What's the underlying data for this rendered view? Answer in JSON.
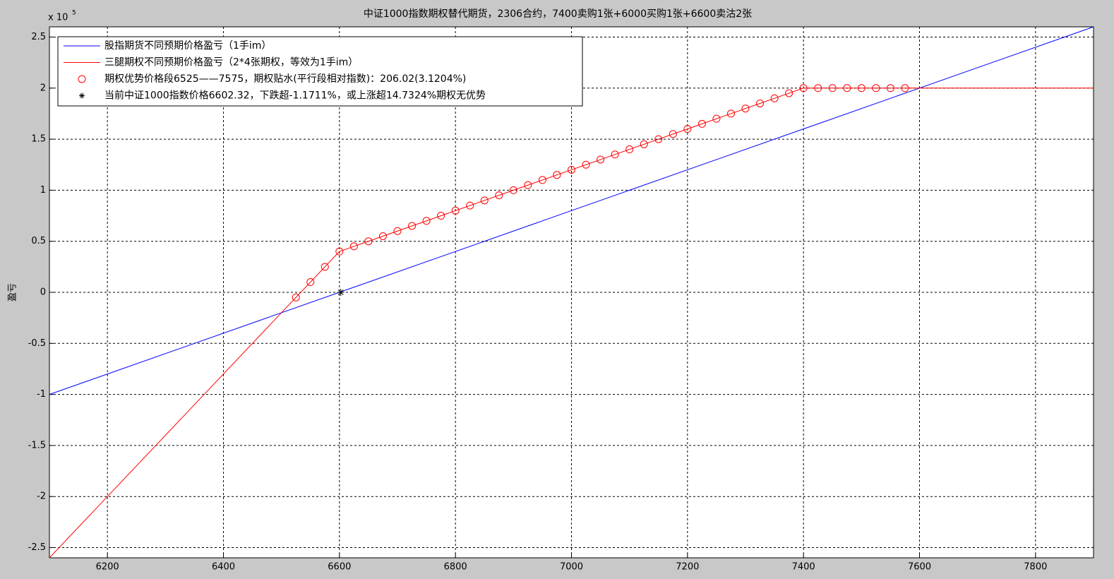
{
  "chart_data": {
    "type": "line",
    "title": "中证1000指数期权替代期货，2306合约，7400卖购1张+6000买购1张+6600卖沽2张",
    "y_label": "盈亏",
    "y_multiplier": "x 10",
    "y_multiplier_exp": "5",
    "xlim": [
      6100,
      7900
    ],
    "xticks": [
      6200,
      6400,
      6600,
      6800,
      7000,
      7200,
      7400,
      7600,
      7800
    ],
    "ylim": [
      -2.6,
      2.6
    ],
    "yticks": [
      -2.5,
      -2,
      -1.5,
      -1,
      -0.5,
      0,
      0.5,
      1,
      1.5,
      2,
      2.5
    ],
    "grid": true,
    "legend": "upper-left",
    "series": [
      {
        "name": "股指期货不同预期价格盈亏（1手im）",
        "color": "#0000ff",
        "marker": "none",
        "x": [
          6100,
          7900
        ],
        "values": [
          -1.0,
          2.6
        ]
      },
      {
        "name": "三腿期权不同预期价格盈亏（2*4张期权，等效为1手im）",
        "color": "#ff0000",
        "marker": "none",
        "x": [
          6100,
          6600,
          7400,
          7900
        ],
        "values": [
          -2.6,
          0.4,
          2.0,
          2.0
        ]
      },
      {
        "name": "期权优势价格段6525——7575，期权贴水(平行段相对指数)：206.02(3.1204%)",
        "color": "#ff0000",
        "marker": "circle",
        "x": [
          6525,
          6550,
          6575,
          6600,
          6625,
          6650,
          6675,
          6700,
          6725,
          6750,
          6775,
          6800,
          6825,
          6850,
          6875,
          6900,
          6925,
          6950,
          6975,
          7000,
          7025,
          7050,
          7075,
          7100,
          7125,
          7150,
          7175,
          7200,
          7225,
          7250,
          7275,
          7300,
          7325,
          7350,
          7375,
          7400,
          7425,
          7450,
          7475,
          7500,
          7525,
          7550,
          7575
        ],
        "values": [
          -0.05,
          0.1,
          0.25,
          0.4,
          0.45,
          0.5,
          0.55,
          0.6,
          0.65,
          0.7,
          0.75,
          0.8,
          0.85,
          0.9,
          0.95,
          1.0,
          1.05,
          1.1,
          1.15,
          1.2,
          1.25,
          1.3,
          1.35,
          1.4,
          1.45,
          1.5,
          1.55,
          1.6,
          1.65,
          1.7,
          1.75,
          1.8,
          1.85,
          1.9,
          1.95,
          2.0,
          2.0,
          2.0,
          2.0,
          2.0,
          2.0,
          2.0,
          2.0
        ]
      },
      {
        "name": "当前中证1000指数价格6602.32，下跌超-1.1711%，或上涨超14.7324%期权无优势",
        "color": "#000000",
        "marker": "star",
        "x": [
          6602.32
        ],
        "values": [
          0
        ]
      }
    ]
  }
}
